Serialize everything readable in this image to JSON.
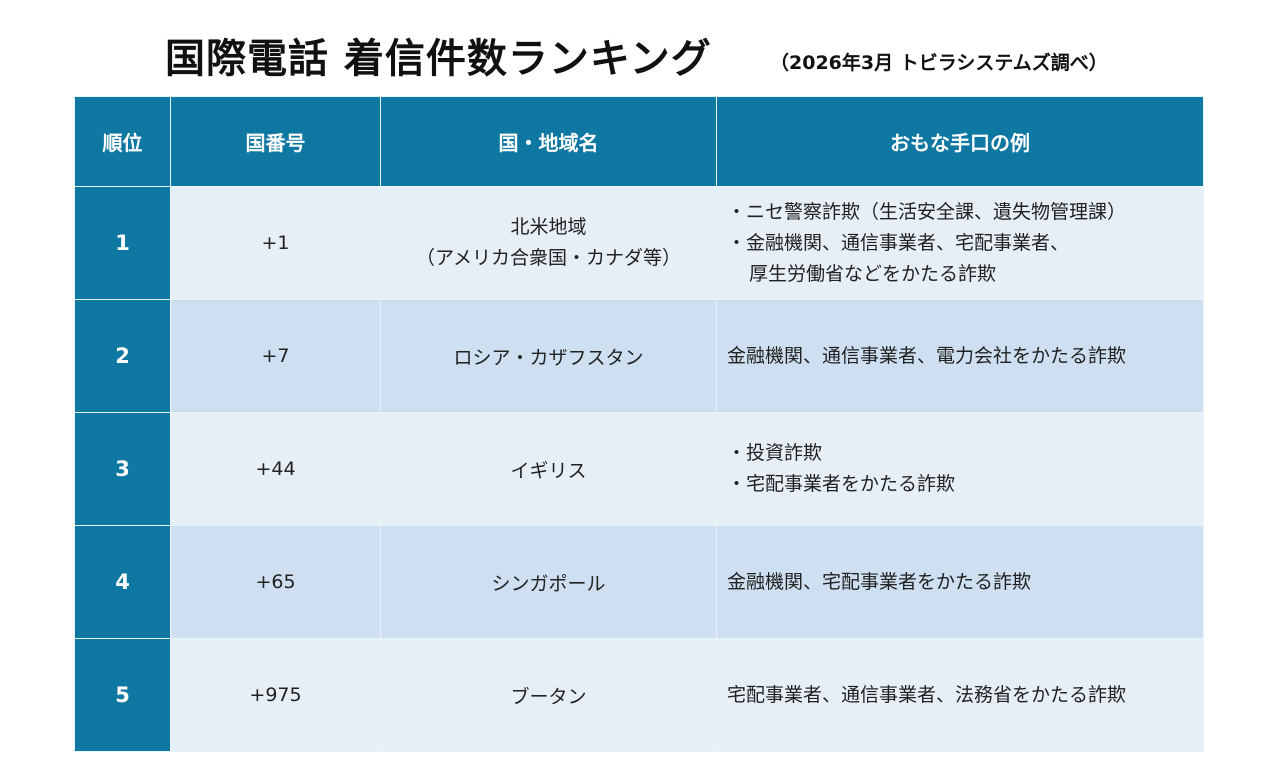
{
  "title": "国際電話 着信件数ランキング",
  "subtitle": "（2026年3月 トビラシステムズ調べ）",
  "colors": {
    "header": "#0e77a2",
    "row_light": "#e6eef6",
    "row_dark": "#cddff0"
  },
  "headers": [
    "順位",
    "国番号",
    "国・地域名",
    "おもな手口の例"
  ],
  "rows": [
    {
      "rank": "1",
      "code": "+1",
      "region": [
        "北米地域",
        "（アメリカ合衆国・カナダ等）"
      ],
      "methods": [
        "・ニセ警察詐欺（生活安全課、遺失物管理課）",
        "・金融機関、通信事業者、宅配事業者、",
        "厚生労働省などをかたる詐欺"
      ]
    },
    {
      "rank": "2",
      "code": "+7",
      "region": [
        "ロシア・カザフスタン"
      ],
      "methods": [
        "金融機関、通信事業者、電力会社をかたる詐欺"
      ]
    },
    {
      "rank": "3",
      "code": "+44",
      "region": [
        "イギリス"
      ],
      "methods": [
        "・投資詐欺",
        "・宅配事業者をかたる詐欺"
      ]
    },
    {
      "rank": "4",
      "code": "+65",
      "region": [
        "シンガポール"
      ],
      "methods": [
        "金融機関、宅配事業者をかたる詐欺"
      ]
    },
    {
      "rank": "5",
      "code": "+975",
      "region": [
        "ブータン"
      ],
      "methods": [
        "宅配事業者、通信事業者、法務省をかたる詐欺"
      ]
    }
  ]
}
